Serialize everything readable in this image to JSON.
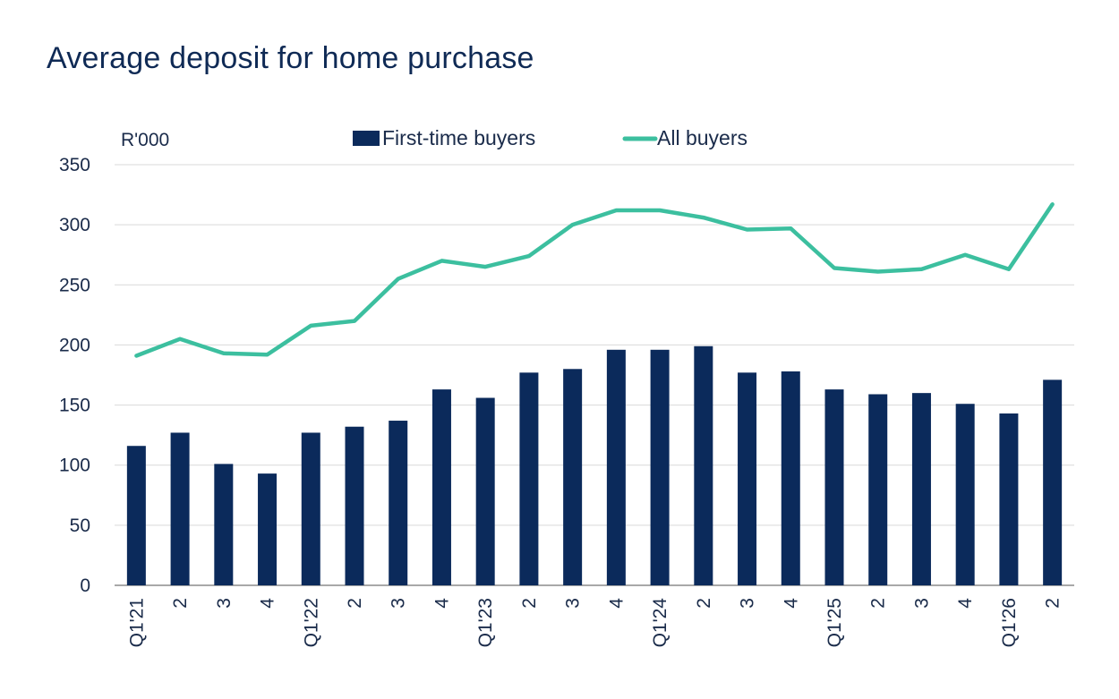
{
  "title": "Average deposit for home purchase",
  "chart_data": {
    "type": "bar",
    "title": "Average deposit for home purchase",
    "unit": "R'000",
    "ylim": [
      0,
      350
    ],
    "yticks": [
      0,
      50,
      100,
      150,
      200,
      250,
      300,
      350
    ],
    "grid": true,
    "legend_position": "top-center",
    "categories": [
      "Q1'21",
      "2",
      "3",
      "4",
      "Q1'22",
      "2",
      "3",
      "4",
      "Q1'23",
      "2",
      "3",
      "4",
      "Q1'24",
      "2",
      "3",
      "4",
      "Q1'25",
      "2",
      "3",
      "4",
      "Q1'26",
      "2"
    ],
    "series": [
      {
        "name": "First-time buyers",
        "type": "bar",
        "color": "#0b2a5b",
        "values": [
          116,
          127,
          101,
          93,
          127,
          132,
          137,
          163,
          156,
          177,
          180,
          196,
          196,
          199,
          177,
          178,
          163,
          159,
          160,
          151,
          143,
          171
        ]
      },
      {
        "name": "All buyers",
        "type": "line",
        "color": "#3cbf9f",
        "values": [
          191,
          205,
          193,
          192,
          216,
          220,
          255,
          270,
          265,
          274,
          300,
          312,
          312,
          306,
          296,
          297,
          264,
          261,
          263,
          275,
          263,
          317
        ]
      }
    ]
  }
}
